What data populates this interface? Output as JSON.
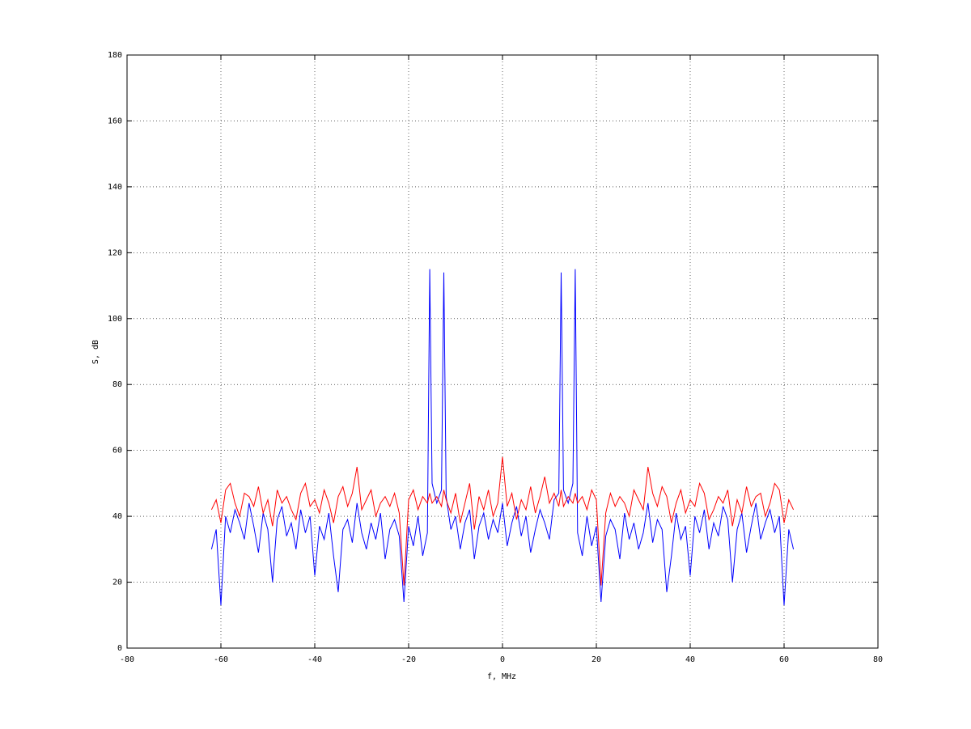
{
  "chart_data": {
    "type": "line",
    "xlabel": "f, MHz",
    "ylabel": "S, dB",
    "xlim": [
      -80,
      80
    ],
    "xticks": [
      -80,
      -60,
      -40,
      -20,
      0,
      20,
      40,
      60,
      80
    ],
    "ylim": [
      0,
      180
    ],
    "yticks": [
      0,
      20,
      40,
      60,
      80,
      100,
      120,
      140,
      160,
      180
    ],
    "grid": true,
    "x": [
      -62,
      -61,
      -60,
      -59,
      -58,
      -57,
      -56,
      -55,
      -54,
      -53,
      -52,
      -51,
      -50,
      -49,
      -48,
      -47,
      -46,
      -45,
      -44,
      -43,
      -42,
      -41,
      -40,
      -39,
      -38,
      -37,
      -36,
      -35,
      -34,
      -33,
      -32,
      -31,
      -30,
      -29,
      -28,
      -27,
      -26,
      -25,
      -24,
      -23,
      -22,
      -21,
      -20,
      -19,
      -18,
      -17,
      -16,
      -15.5,
      -15,
      -14,
      -13,
      -12.5,
      -12,
      -11,
      -10,
      -9,
      -8,
      -7,
      -6,
      -5,
      -4,
      -3,
      -2,
      -1,
      0,
      1,
      2,
      3,
      4,
      5,
      6,
      7,
      8,
      9,
      10,
      11,
      12,
      12.5,
      13,
      14,
      15,
      15.5,
      16,
      17,
      18,
      19,
      20,
      21,
      22,
      23,
      24,
      25,
      26,
      27,
      28,
      29,
      30,
      31,
      32,
      33,
      34,
      35,
      36,
      37,
      38,
      39,
      40,
      41,
      42,
      43,
      44,
      45,
      46,
      47,
      48,
      49,
      50,
      51,
      52,
      53,
      54,
      55,
      56,
      57,
      58,
      59,
      60,
      61,
      62
    ],
    "series": [
      {
        "color": "#0000ff",
        "values": [
          30,
          36,
          13,
          40,
          35,
          42,
          38,
          33,
          44,
          37,
          29,
          41,
          36,
          20,
          39,
          43,
          34,
          38,
          30,
          42,
          35,
          40,
          22,
          37,
          33,
          41,
          28,
          17,
          36,
          39,
          32,
          44,
          35,
          30,
          38,
          33,
          41,
          27,
          36,
          39,
          34,
          14,
          37,
          31,
          40,
          28,
          35,
          115,
          50,
          44,
          48,
          114,
          46,
          36,
          40,
          30,
          38,
          42,
          27,
          37,
          41,
          33,
          39,
          35,
          44,
          31,
          38,
          43,
          34,
          40,
          29,
          36,
          42,
          38,
          33,
          45,
          47,
          114,
          48,
          44,
          50,
          115,
          35,
          28,
          40,
          31,
          37,
          14,
          34,
          39,
          36,
          27,
          41,
          33,
          38,
          30,
          35,
          44,
          32,
          39,
          36,
          17,
          28,
          41,
          33,
          37,
          22,
          40,
          35,
          42,
          30,
          38,
          34,
          43,
          39,
          20,
          36,
          41,
          29,
          37,
          44,
          33,
          38,
          42,
          35,
          40,
          13,
          36,
          30
        ]
      },
      {
        "color": "#ff0000",
        "values": [
          42,
          45,
          38,
          48,
          50,
          44,
          40,
          47,
          46,
          43,
          49,
          41,
          45,
          37,
          48,
          44,
          46,
          42,
          39,
          47,
          50,
          43,
          45,
          41,
          48,
          44,
          38,
          46,
          49,
          43,
          47,
          55,
          42,
          45,
          48,
          40,
          44,
          46,
          43,
          47,
          41,
          19,
          45,
          48,
          42,
          46,
          44,
          47,
          44,
          46,
          43,
          48,
          45,
          41,
          47,
          38,
          44,
          50,
          36,
          46,
          42,
          48,
          40,
          44,
          58,
          43,
          47,
          39,
          45,
          42,
          49,
          41,
          46,
          52,
          44,
          47,
          43,
          48,
          43,
          46,
          44,
          47,
          44,
          46,
          42,
          48,
          45,
          19,
          41,
          47,
          43,
          46,
          44,
          40,
          48,
          45,
          42,
          55,
          47,
          43,
          49,
          46,
          38,
          44,
          48,
          41,
          45,
          43,
          50,
          47,
          39,
          42,
          46,
          44,
          48,
          37,
          45,
          41,
          49,
          43,
          46,
          47,
          40,
          44,
          50,
          48,
          38,
          45,
          42
        ]
      }
    ]
  }
}
